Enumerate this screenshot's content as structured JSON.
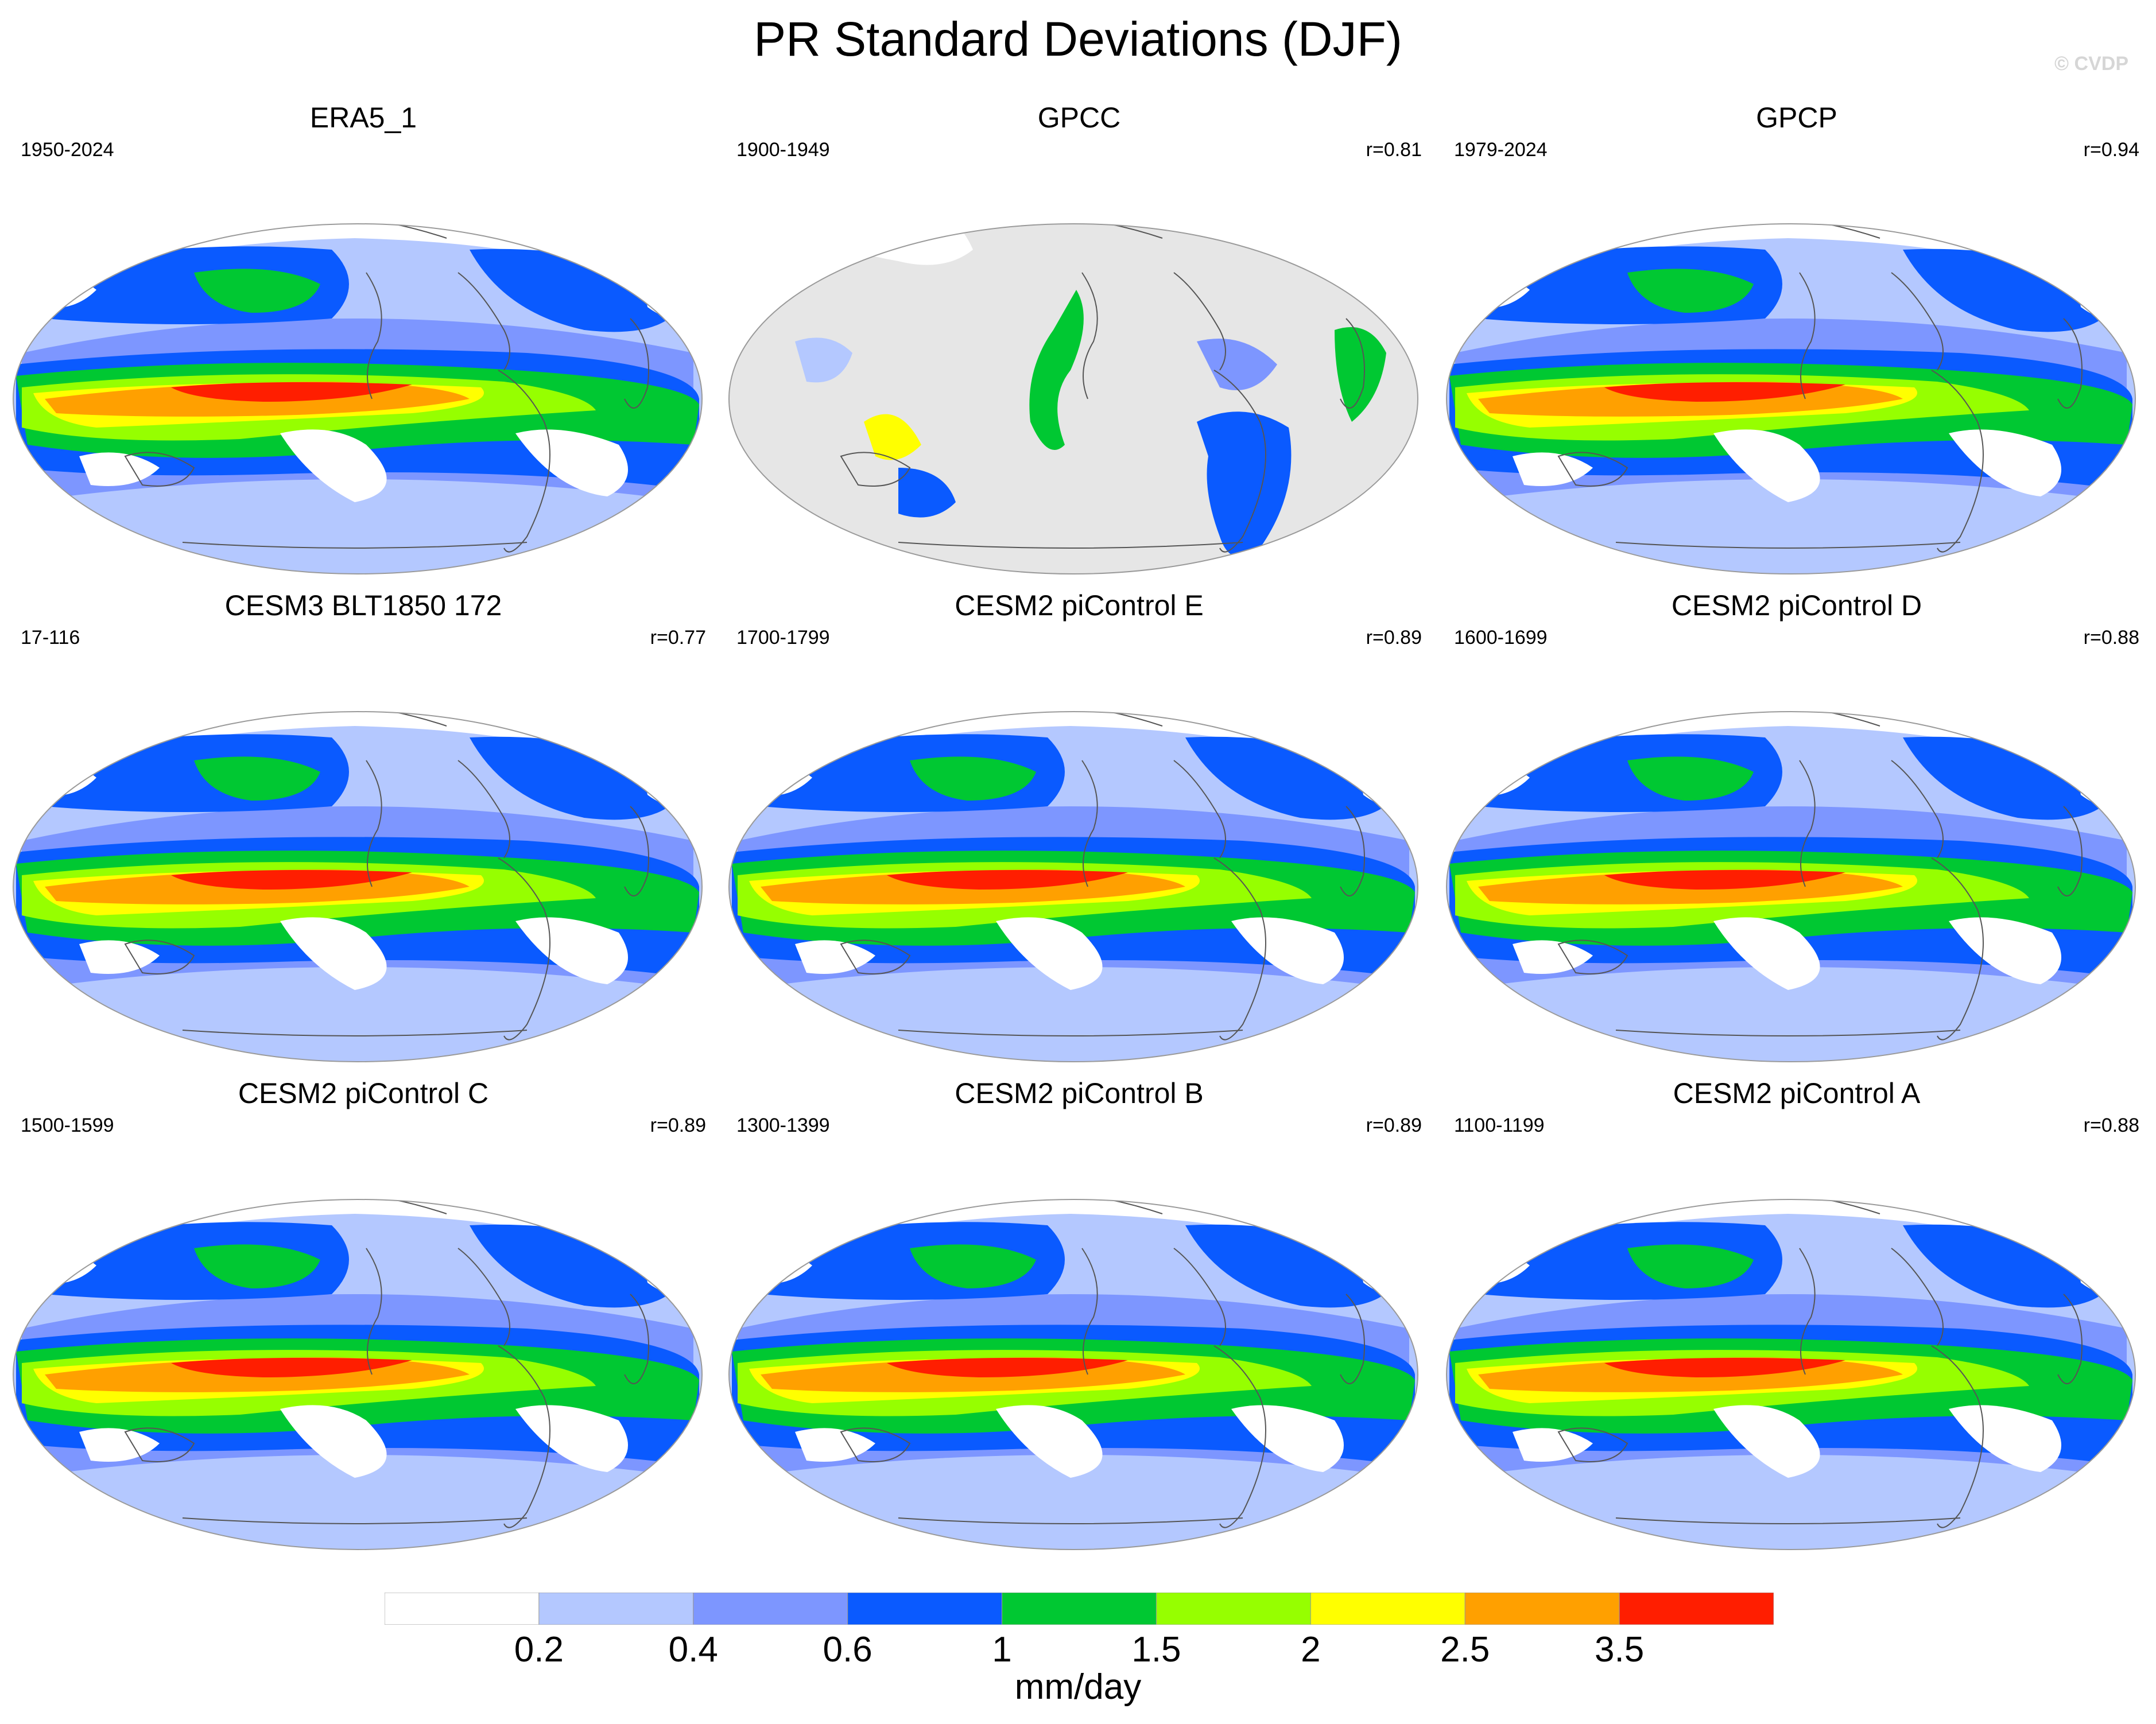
{
  "title": "PR Standard Deviations (DJF)",
  "copyright": "© CVDP",
  "colors": {
    "ocean_fill_masked": "#e6e6e6",
    "outline": "#9a9a9a",
    "levels": [
      "#ffffff",
      "#b4c8ff",
      "#7d96ff",
      "#0a5aff",
      "#00c832",
      "#96ff00",
      "#ffff00",
      "#ffa000",
      "#ff1e00"
    ]
  },
  "panels": [
    {
      "title": "ERA5_1",
      "years": "1950-2024",
      "r": "",
      "masked_ocean": false
    },
    {
      "title": "GPCC",
      "years": "1900-1949",
      "r": "r=0.81",
      "masked_ocean": true
    },
    {
      "title": "GPCP",
      "years": "1979-2024",
      "r": "r=0.94",
      "masked_ocean": false
    },
    {
      "title": "CESM3 BLT1850 172",
      "years": "17-116",
      "r": "r=0.77",
      "masked_ocean": false
    },
    {
      "title": "CESM2 piControl E",
      "years": "1700-1799",
      "r": "r=0.89",
      "masked_ocean": false
    },
    {
      "title": "CESM2 piControl D",
      "years": "1600-1699",
      "r": "r=0.88",
      "masked_ocean": false
    },
    {
      "title": "CESM2 piControl C",
      "years": "1500-1599",
      "r": "r=0.89",
      "masked_ocean": false
    },
    {
      "title": "CESM2 piControl B",
      "years": "1300-1399",
      "r": "r=0.89",
      "masked_ocean": false
    },
    {
      "title": "CESM2 piControl A",
      "years": "1100-1199",
      "r": "r=0.88",
      "masked_ocean": false
    }
  ],
  "colorbar": {
    "labels": [
      "0.2",
      "0.4",
      "0.6",
      "1",
      "1.5",
      "2",
      "2.5",
      "3.5"
    ],
    "units": "mm/day"
  }
}
